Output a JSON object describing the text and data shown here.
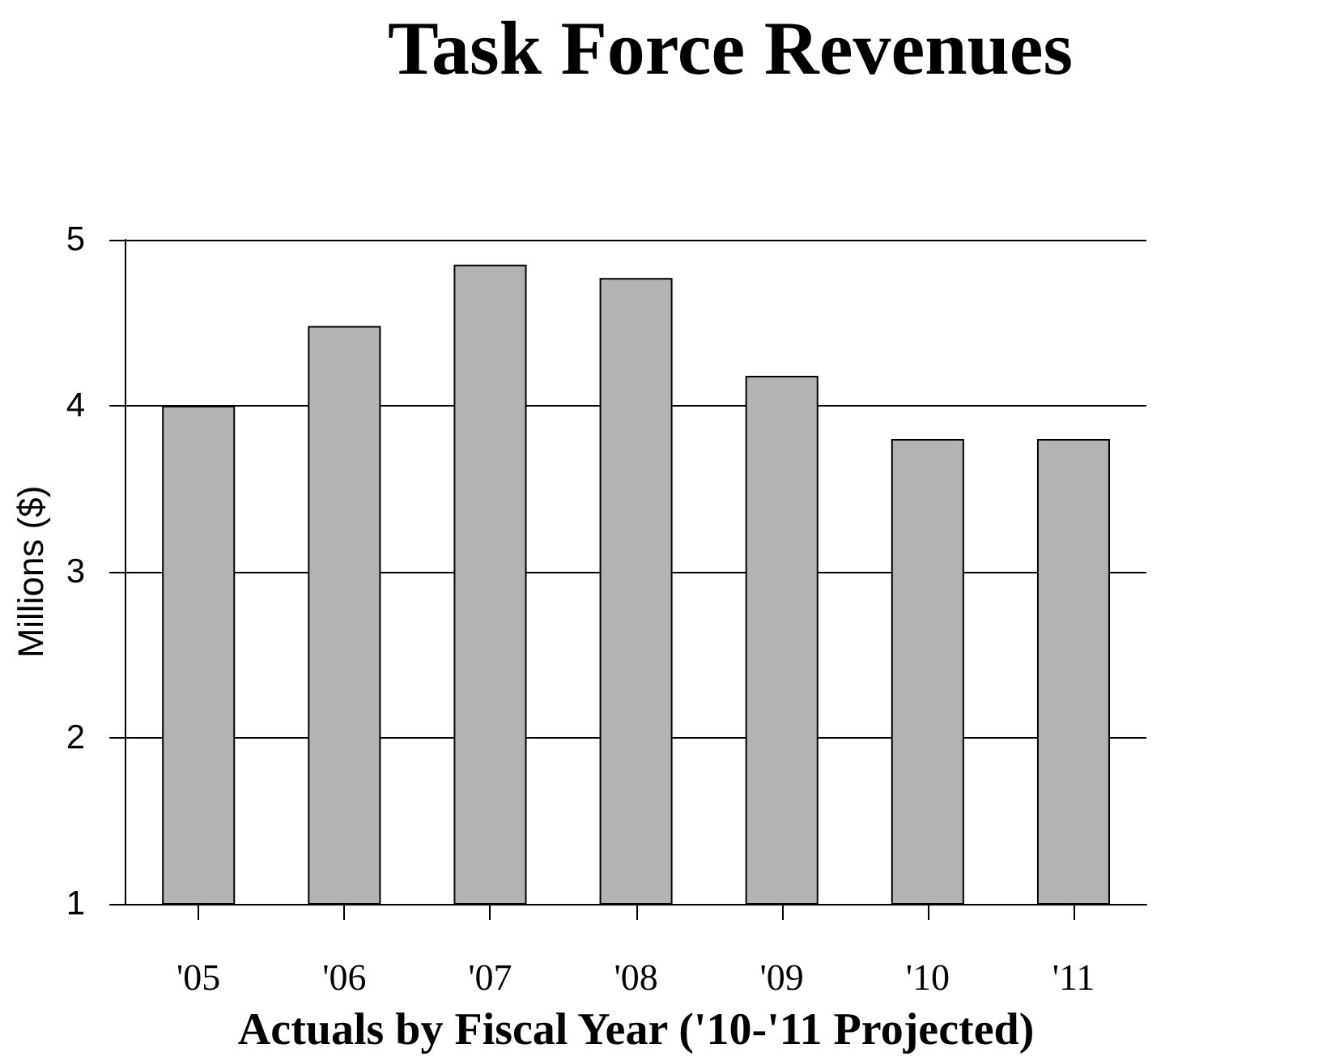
{
  "chart_data": {
    "type": "bar",
    "title": "Task Force Revenues",
    "xlabel": "Actuals by Fiscal Year ('10-'11 Projected)",
    "ylabel": "Millions ($)",
    "categories": [
      "'05",
      "'06",
      "'07",
      "'08",
      "'09",
      "'10",
      "'11"
    ],
    "values": [
      4.0,
      4.48,
      4.85,
      4.77,
      4.18,
      3.8,
      3.8
    ],
    "color": "#b3b3b3",
    "ylim": [
      1,
      5
    ],
    "yticks": [
      1,
      2,
      3,
      4,
      5
    ],
    "grid": "y"
  }
}
